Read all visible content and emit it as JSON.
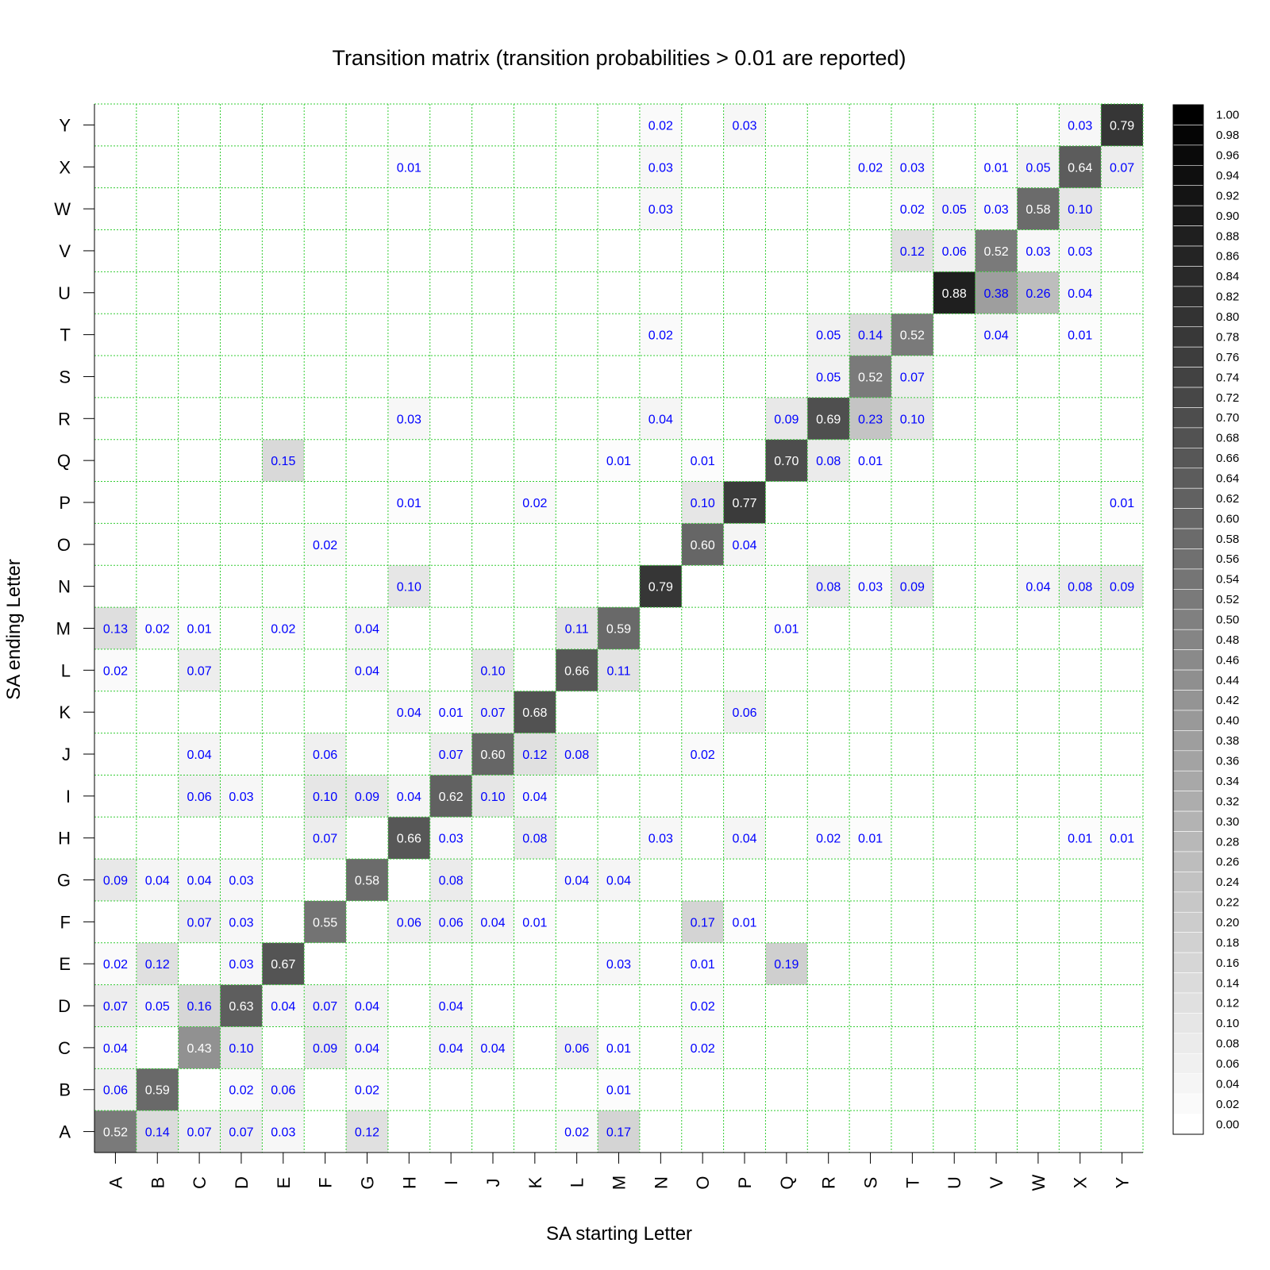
{
  "chart_data": {
    "type": "heatmap",
    "title": "Transition matrix (transition probabilities > 0.01 are reported)",
    "xlabel": "SA starting Letter",
    "ylabel": "SA ending Letter",
    "x_categories": [
      "A",
      "B",
      "C",
      "D",
      "E",
      "F",
      "G",
      "H",
      "I",
      "J",
      "K",
      "L",
      "M",
      "N",
      "O",
      "P",
      "Q",
      "R",
      "S",
      "T",
      "U",
      "V",
      "W",
      "X",
      "Y"
    ],
    "y_categories": [
      "A",
      "B",
      "C",
      "D",
      "E",
      "F",
      "G",
      "H",
      "I",
      "J",
      "K",
      "L",
      "M",
      "N",
      "O",
      "P",
      "Q",
      "R",
      "S",
      "T",
      "U",
      "V",
      "W",
      "X",
      "Y"
    ],
    "value_range": [
      0,
      1
    ],
    "colorscale": "grayscale, white at 0.00 to black at 1.00",
    "legend_position": "right",
    "legend_ticks": [
      "1.00",
      "0.98",
      "0.96",
      "0.94",
      "0.92",
      "0.90",
      "0.88",
      "0.86",
      "0.84",
      "0.82",
      "0.80",
      "0.78",
      "0.76",
      "0.74",
      "0.72",
      "0.70",
      "0.68",
      "0.66",
      "0.64",
      "0.62",
      "0.60",
      "0.58",
      "0.56",
      "0.54",
      "0.52",
      "0.50",
      "0.48",
      "0.46",
      "0.44",
      "0.42",
      "0.40",
      "0.38",
      "0.36",
      "0.34",
      "0.32",
      "0.30",
      "0.28",
      "0.26",
      "0.24",
      "0.22",
      "0.20",
      "0.18",
      "0.16",
      "0.14",
      "0.12",
      "0.10",
      "0.08",
      "0.06",
      "0.04",
      "0.02",
      "0.00"
    ],
    "grid": true,
    "grid_color": "#33cc33",
    "label_color_light": "#0000ff",
    "label_color_dark": "#ffffff",
    "cells": [
      {
        "x": "A",
        "y": "A",
        "v": "0.52"
      },
      {
        "x": "B",
        "y": "A",
        "v": "0.14"
      },
      {
        "x": "C",
        "y": "A",
        "v": "0.07"
      },
      {
        "x": "D",
        "y": "A",
        "v": "0.07"
      },
      {
        "x": "E",
        "y": "A",
        "v": "0.03"
      },
      {
        "x": "G",
        "y": "A",
        "v": "0.12"
      },
      {
        "x": "L",
        "y": "A",
        "v": "0.02"
      },
      {
        "x": "M",
        "y": "A",
        "v": "0.17"
      },
      {
        "x": "A",
        "y": "B",
        "v": "0.06"
      },
      {
        "x": "B",
        "y": "B",
        "v": "0.59"
      },
      {
        "x": "D",
        "y": "B",
        "v": "0.02"
      },
      {
        "x": "E",
        "y": "B",
        "v": "0.06"
      },
      {
        "x": "G",
        "y": "B",
        "v": "0.02"
      },
      {
        "x": "M",
        "y": "B",
        "v": "0.01"
      },
      {
        "x": "A",
        "y": "C",
        "v": "0.04"
      },
      {
        "x": "C",
        "y": "C",
        "v": "0.43"
      },
      {
        "x": "D",
        "y": "C",
        "v": "0.10"
      },
      {
        "x": "F",
        "y": "C",
        "v": "0.09"
      },
      {
        "x": "G",
        "y": "C",
        "v": "0.04"
      },
      {
        "x": "I",
        "y": "C",
        "v": "0.04"
      },
      {
        "x": "J",
        "y": "C",
        "v": "0.04"
      },
      {
        "x": "L",
        "y": "C",
        "v": "0.06"
      },
      {
        "x": "M",
        "y": "C",
        "v": "0.01"
      },
      {
        "x": "O",
        "y": "C",
        "v": "0.02"
      },
      {
        "x": "A",
        "y": "D",
        "v": "0.07"
      },
      {
        "x": "B",
        "y": "D",
        "v": "0.05"
      },
      {
        "x": "C",
        "y": "D",
        "v": "0.16"
      },
      {
        "x": "D",
        "y": "D",
        "v": "0.63"
      },
      {
        "x": "E",
        "y": "D",
        "v": "0.04"
      },
      {
        "x": "F",
        "y": "D",
        "v": "0.07"
      },
      {
        "x": "G",
        "y": "D",
        "v": "0.04"
      },
      {
        "x": "I",
        "y": "D",
        "v": "0.04"
      },
      {
        "x": "O",
        "y": "D",
        "v": "0.02"
      },
      {
        "x": "A",
        "y": "E",
        "v": "0.02"
      },
      {
        "x": "B",
        "y": "E",
        "v": "0.12"
      },
      {
        "x": "D",
        "y": "E",
        "v": "0.03"
      },
      {
        "x": "E",
        "y": "E",
        "v": "0.67"
      },
      {
        "x": "M",
        "y": "E",
        "v": "0.03"
      },
      {
        "x": "O",
        "y": "E",
        "v": "0.01"
      },
      {
        "x": "Q",
        "y": "E",
        "v": "0.19"
      },
      {
        "x": "C",
        "y": "F",
        "v": "0.07"
      },
      {
        "x": "D",
        "y": "F",
        "v": "0.03"
      },
      {
        "x": "F",
        "y": "F",
        "v": "0.55"
      },
      {
        "x": "H",
        "y": "F",
        "v": "0.06"
      },
      {
        "x": "I",
        "y": "F",
        "v": "0.06"
      },
      {
        "x": "J",
        "y": "F",
        "v": "0.04"
      },
      {
        "x": "K",
        "y": "F",
        "v": "0.01"
      },
      {
        "x": "O",
        "y": "F",
        "v": "0.17"
      },
      {
        "x": "P",
        "y": "F",
        "v": "0.01"
      },
      {
        "x": "A",
        "y": "G",
        "v": "0.09"
      },
      {
        "x": "B",
        "y": "G",
        "v": "0.04"
      },
      {
        "x": "C",
        "y": "G",
        "v": "0.04"
      },
      {
        "x": "D",
        "y": "G",
        "v": "0.03"
      },
      {
        "x": "G",
        "y": "G",
        "v": "0.58"
      },
      {
        "x": "I",
        "y": "G",
        "v": "0.08"
      },
      {
        "x": "L",
        "y": "G",
        "v": "0.04"
      },
      {
        "x": "M",
        "y": "G",
        "v": "0.04"
      },
      {
        "x": "F",
        "y": "H",
        "v": "0.07"
      },
      {
        "x": "H",
        "y": "H",
        "v": "0.66"
      },
      {
        "x": "I",
        "y": "H",
        "v": "0.03"
      },
      {
        "x": "K",
        "y": "H",
        "v": "0.08"
      },
      {
        "x": "N",
        "y": "H",
        "v": "0.03"
      },
      {
        "x": "P",
        "y": "H",
        "v": "0.04"
      },
      {
        "x": "R",
        "y": "H",
        "v": "0.02"
      },
      {
        "x": "S",
        "y": "H",
        "v": "0.01"
      },
      {
        "x": "X",
        "y": "H",
        "v": "0.01"
      },
      {
        "x": "Y",
        "y": "H",
        "v": "0.01"
      },
      {
        "x": "C",
        "y": "I",
        "v": "0.06"
      },
      {
        "x": "D",
        "y": "I",
        "v": "0.03"
      },
      {
        "x": "F",
        "y": "I",
        "v": "0.10"
      },
      {
        "x": "G",
        "y": "I",
        "v": "0.09"
      },
      {
        "x": "H",
        "y": "I",
        "v": "0.04"
      },
      {
        "x": "I",
        "y": "I",
        "v": "0.62"
      },
      {
        "x": "J",
        "y": "I",
        "v": "0.10"
      },
      {
        "x": "K",
        "y": "I",
        "v": "0.04"
      },
      {
        "x": "C",
        "y": "J",
        "v": "0.04"
      },
      {
        "x": "F",
        "y": "J",
        "v": "0.06"
      },
      {
        "x": "I",
        "y": "J",
        "v": "0.07"
      },
      {
        "x": "J",
        "y": "J",
        "v": "0.60"
      },
      {
        "x": "K",
        "y": "J",
        "v": "0.12"
      },
      {
        "x": "L",
        "y": "J",
        "v": "0.08"
      },
      {
        "x": "O",
        "y": "J",
        "v": "0.02"
      },
      {
        "x": "H",
        "y": "K",
        "v": "0.04"
      },
      {
        "x": "I",
        "y": "K",
        "v": "0.01"
      },
      {
        "x": "J",
        "y": "K",
        "v": "0.07"
      },
      {
        "x": "K",
        "y": "K",
        "v": "0.68"
      },
      {
        "x": "P",
        "y": "K",
        "v": "0.06"
      },
      {
        "x": "A",
        "y": "L",
        "v": "0.02"
      },
      {
        "x": "C",
        "y": "L",
        "v": "0.07"
      },
      {
        "x": "G",
        "y": "L",
        "v": "0.04"
      },
      {
        "x": "J",
        "y": "L",
        "v": "0.10"
      },
      {
        "x": "L",
        "y": "L",
        "v": "0.66"
      },
      {
        "x": "M",
        "y": "L",
        "v": "0.11"
      },
      {
        "x": "A",
        "y": "M",
        "v": "0.13"
      },
      {
        "x": "B",
        "y": "M",
        "v": "0.02"
      },
      {
        "x": "C",
        "y": "M",
        "v": "0.01"
      },
      {
        "x": "E",
        "y": "M",
        "v": "0.02"
      },
      {
        "x": "G",
        "y": "M",
        "v": "0.04"
      },
      {
        "x": "L",
        "y": "M",
        "v": "0.11"
      },
      {
        "x": "M",
        "y": "M",
        "v": "0.59"
      },
      {
        "x": "Q",
        "y": "M",
        "v": "0.01"
      },
      {
        "x": "H",
        "y": "N",
        "v": "0.10"
      },
      {
        "x": "N",
        "y": "N",
        "v": "0.79"
      },
      {
        "x": "R",
        "y": "N",
        "v": "0.08"
      },
      {
        "x": "S",
        "y": "N",
        "v": "0.03"
      },
      {
        "x": "T",
        "y": "N",
        "v": "0.09"
      },
      {
        "x": "W",
        "y": "N",
        "v": "0.04"
      },
      {
        "x": "X",
        "y": "N",
        "v": "0.08"
      },
      {
        "x": "Y",
        "y": "N",
        "v": "0.09"
      },
      {
        "x": "F",
        "y": "O",
        "v": "0.02"
      },
      {
        "x": "O",
        "y": "O",
        "v": "0.60"
      },
      {
        "x": "P",
        "y": "O",
        "v": "0.04"
      },
      {
        "x": "H",
        "y": "P",
        "v": "0.01"
      },
      {
        "x": "K",
        "y": "P",
        "v": "0.02"
      },
      {
        "x": "O",
        "y": "P",
        "v": "0.10"
      },
      {
        "x": "P",
        "y": "P",
        "v": "0.77"
      },
      {
        "x": "Y",
        "y": "P",
        "v": "0.01"
      },
      {
        "x": "E",
        "y": "Q",
        "v": "0.15"
      },
      {
        "x": "M",
        "y": "Q",
        "v": "0.01"
      },
      {
        "x": "O",
        "y": "Q",
        "v": "0.01"
      },
      {
        "x": "Q",
        "y": "Q",
        "v": "0.70"
      },
      {
        "x": "R",
        "y": "Q",
        "v": "0.08"
      },
      {
        "x": "S",
        "y": "Q",
        "v": "0.01"
      },
      {
        "x": "H",
        "y": "R",
        "v": "0.03"
      },
      {
        "x": "N",
        "y": "R",
        "v": "0.04"
      },
      {
        "x": "Q",
        "y": "R",
        "v": "0.09"
      },
      {
        "x": "R",
        "y": "R",
        "v": "0.69"
      },
      {
        "x": "S",
        "y": "R",
        "v": "0.23"
      },
      {
        "x": "T",
        "y": "R",
        "v": "0.10"
      },
      {
        "x": "R",
        "y": "S",
        "v": "0.05"
      },
      {
        "x": "S",
        "y": "S",
        "v": "0.52"
      },
      {
        "x": "T",
        "y": "S",
        "v": "0.07"
      },
      {
        "x": "N",
        "y": "T",
        "v": "0.02"
      },
      {
        "x": "R",
        "y": "T",
        "v": "0.05"
      },
      {
        "x": "S",
        "y": "T",
        "v": "0.14"
      },
      {
        "x": "T",
        "y": "T",
        "v": "0.52"
      },
      {
        "x": "V",
        "y": "T",
        "v": "0.04"
      },
      {
        "x": "X",
        "y": "T",
        "v": "0.01"
      },
      {
        "x": "U",
        "y": "U",
        "v": "0.88"
      },
      {
        "x": "V",
        "y": "U",
        "v": "0.38"
      },
      {
        "x": "W",
        "y": "U",
        "v": "0.26"
      },
      {
        "x": "X",
        "y": "U",
        "v": "0.04"
      },
      {
        "x": "T",
        "y": "V",
        "v": "0.12"
      },
      {
        "x": "U",
        "y": "V",
        "v": "0.06"
      },
      {
        "x": "V",
        "y": "V",
        "v": "0.52"
      },
      {
        "x": "W",
        "y": "V",
        "v": "0.03"
      },
      {
        "x": "X",
        "y": "V",
        "v": "0.03"
      },
      {
        "x": "N",
        "y": "W",
        "v": "0.03"
      },
      {
        "x": "T",
        "y": "W",
        "v": "0.02"
      },
      {
        "x": "U",
        "y": "W",
        "v": "0.05"
      },
      {
        "x": "V",
        "y": "W",
        "v": "0.03"
      },
      {
        "x": "W",
        "y": "W",
        "v": "0.58"
      },
      {
        "x": "X",
        "y": "W",
        "v": "0.10"
      },
      {
        "x": "H",
        "y": "X",
        "v": "0.01"
      },
      {
        "x": "N",
        "y": "X",
        "v": "0.03"
      },
      {
        "x": "S",
        "y": "X",
        "v": "0.02"
      },
      {
        "x": "T",
        "y": "X",
        "v": "0.03"
      },
      {
        "x": "V",
        "y": "X",
        "v": "0.01"
      },
      {
        "x": "W",
        "y": "X",
        "v": "0.05"
      },
      {
        "x": "X",
        "y": "X",
        "v": "0.64"
      },
      {
        "x": "Y",
        "y": "X",
        "v": "0.07"
      },
      {
        "x": "N",
        "y": "Y",
        "v": "0.02"
      },
      {
        "x": "P",
        "y": "Y",
        "v": "0.03"
      },
      {
        "x": "X",
        "y": "Y",
        "v": "0.03"
      },
      {
        "x": "Y",
        "y": "Y",
        "v": "0.79"
      }
    ]
  }
}
